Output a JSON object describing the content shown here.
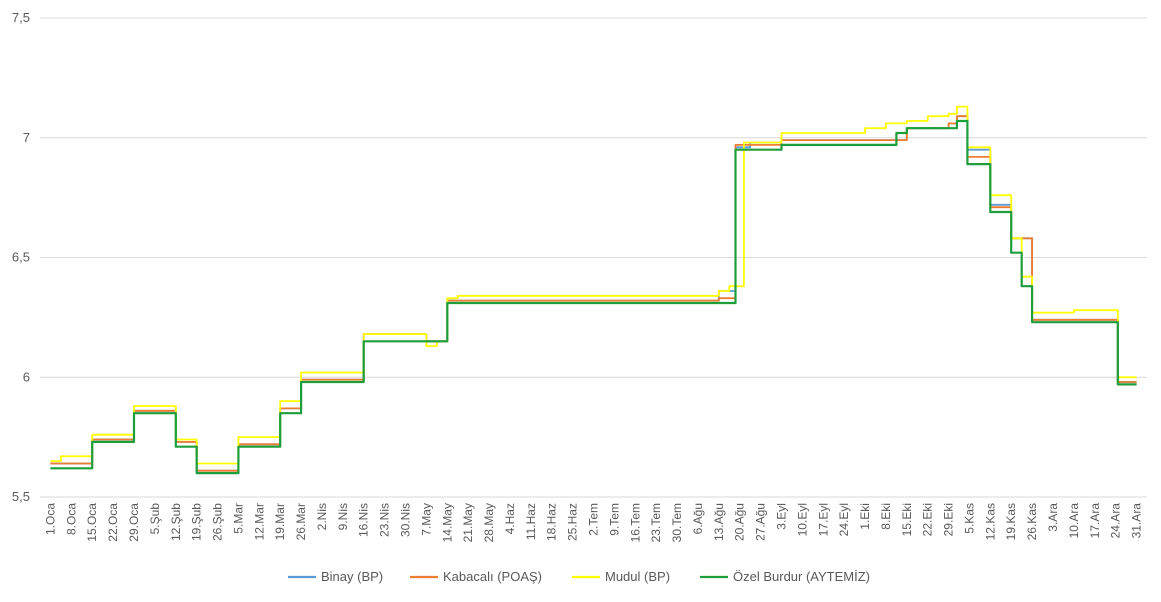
{
  "chart_data": {
    "type": "line",
    "title": "",
    "xlabel": "",
    "ylabel": "",
    "ylim": [
      5.5,
      7.5
    ],
    "yticks": [
      "5,5",
      "6",
      "6,5",
      "7",
      "7,5"
    ],
    "grid": true,
    "legend_position": "bottom",
    "categories": [
      "1.Oca",
      "8.Oca",
      "15.Oca",
      "22.Oca",
      "29.Oca",
      "5.Şub",
      "12.Şub",
      "19.Şub",
      "26.Şub",
      "5.Mar",
      "12.Mar",
      "19.Mar",
      "26.Mar",
      "2.Nis",
      "9.Nis",
      "16.Nis",
      "23.Nis",
      "30.Nis",
      "7.May",
      "14.May",
      "21.May",
      "28.May",
      "4.Haz",
      "11.Haz",
      "18.Haz",
      "25.Haz",
      "2.Tem",
      "9.Tem",
      "16.Tem",
      "23.Tem",
      "30.Tem",
      "6.Ağu",
      "13.Ağu",
      "20.Ağu",
      "27.Ağu",
      "3.Eyl",
      "10.Eyl",
      "17.Eyl",
      "24.Eyl",
      "1.Eki",
      "8.Eki",
      "15.Eki",
      "22.Eki",
      "29.Eki",
      "5.Kas",
      "12.Kas",
      "19.Kas",
      "26.Kas",
      "3.Ara",
      "10.Ara",
      "17.Ara",
      "24.Ara",
      "31.Ara"
    ],
    "series": [
      {
        "name": "Binay (BP)",
        "color": "#5b9bd5",
        "points": [
          [
            0,
            5.64
          ],
          [
            2,
            5.74
          ],
          [
            4,
            5.86
          ],
          [
            6,
            5.73
          ],
          [
            7,
            5.61
          ],
          [
            9,
            5.72
          ],
          [
            11,
            5.87
          ],
          [
            12,
            5.99
          ],
          [
            15,
            6.18
          ],
          [
            18,
            6.15
          ],
          [
            19,
            6.32
          ],
          [
            32,
            6.36
          ],
          [
            32.8,
            6.96
          ],
          [
            33.5,
            6.98
          ],
          [
            35,
            6.99
          ],
          [
            40,
            6.99
          ],
          [
            41,
            7.04
          ],
          [
            43,
            7.06
          ],
          [
            43.4,
            7.09
          ],
          [
            43.9,
            6.95
          ],
          [
            45,
            6.72
          ],
          [
            46,
            6.58
          ],
          [
            47,
            6.24
          ],
          [
            51,
            6.24
          ],
          [
            51.1,
            5.98
          ],
          [
            52,
            5.98
          ]
        ]
      },
      {
        "name": "Kabacalı (POAŞ)",
        "color": "#ed7d31",
        "points": [
          [
            0,
            5.64
          ],
          [
            2,
            5.74
          ],
          [
            4,
            5.86
          ],
          [
            6,
            5.73
          ],
          [
            7,
            5.61
          ],
          [
            9,
            5.72
          ],
          [
            11,
            5.87
          ],
          [
            12,
            5.99
          ],
          [
            15,
            6.18
          ],
          [
            18,
            6.15
          ],
          [
            19,
            6.32
          ],
          [
            32,
            6.33
          ],
          [
            32.8,
            6.97
          ],
          [
            35,
            6.99
          ],
          [
            40,
            6.99
          ],
          [
            41,
            7.04
          ],
          [
            43,
            7.06
          ],
          [
            43.4,
            7.09
          ],
          [
            43.9,
            6.92
          ],
          [
            45,
            6.71
          ],
          [
            46,
            6.58
          ],
          [
            47,
            6.24
          ],
          [
            51,
            6.24
          ],
          [
            51.1,
            5.98
          ],
          [
            52,
            5.98
          ]
        ]
      },
      {
        "name": "Mudul (BP)",
        "color": "#ffff00",
        "points": [
          [
            0,
            5.65
          ],
          [
            0.5,
            5.67
          ],
          [
            2,
            5.76
          ],
          [
            4,
            5.88
          ],
          [
            6,
            5.74
          ],
          [
            7,
            5.64
          ],
          [
            9,
            5.75
          ],
          [
            11,
            5.9
          ],
          [
            12,
            6.02
          ],
          [
            15,
            6.18
          ],
          [
            18,
            6.13
          ],
          [
            18.5,
            6.15
          ],
          [
            19,
            6.33
          ],
          [
            19.5,
            6.34
          ],
          [
            32,
            6.36
          ],
          [
            32.5,
            6.38
          ],
          [
            33.2,
            6.98
          ],
          [
            35,
            7.02
          ],
          [
            38,
            7.02
          ],
          [
            39,
            7.04
          ],
          [
            40,
            7.06
          ],
          [
            41,
            7.07
          ],
          [
            42,
            7.09
          ],
          [
            43,
            7.1
          ],
          [
            43.4,
            7.13
          ],
          [
            43.9,
            6.96
          ],
          [
            45,
            6.76
          ],
          [
            46,
            6.58
          ],
          [
            46.5,
            6.42
          ],
          [
            47,
            6.27
          ],
          [
            48,
            6.27
          ],
          [
            49,
            6.28
          ],
          [
            51,
            6.28
          ],
          [
            51.1,
            6.0
          ],
          [
            52,
            6.0
          ]
        ]
      },
      {
        "name": "Özel Burdur (AYTEMİZ)",
        "color": "#1e9e3a",
        "points": [
          [
            0,
            5.62
          ],
          [
            2,
            5.73
          ],
          [
            4,
            5.85
          ],
          [
            6,
            5.71
          ],
          [
            7,
            5.6
          ],
          [
            9,
            5.71
          ],
          [
            11,
            5.85
          ],
          [
            12,
            5.98
          ],
          [
            15,
            6.15
          ],
          [
            19,
            6.31
          ],
          [
            32,
            6.31
          ],
          [
            32.8,
            6.95
          ],
          [
            35,
            6.97
          ],
          [
            40,
            6.97
          ],
          [
            40.5,
            7.02
          ],
          [
            41,
            7.04
          ],
          [
            43,
            7.04
          ],
          [
            43.4,
            7.07
          ],
          [
            43.9,
            6.89
          ],
          [
            45,
            6.69
          ],
          [
            46,
            6.52
          ],
          [
            46.5,
            6.38
          ],
          [
            47,
            6.23
          ],
          [
            51,
            6.23
          ],
          [
            51.1,
            5.97
          ],
          [
            52,
            5.97
          ]
        ]
      }
    ]
  }
}
